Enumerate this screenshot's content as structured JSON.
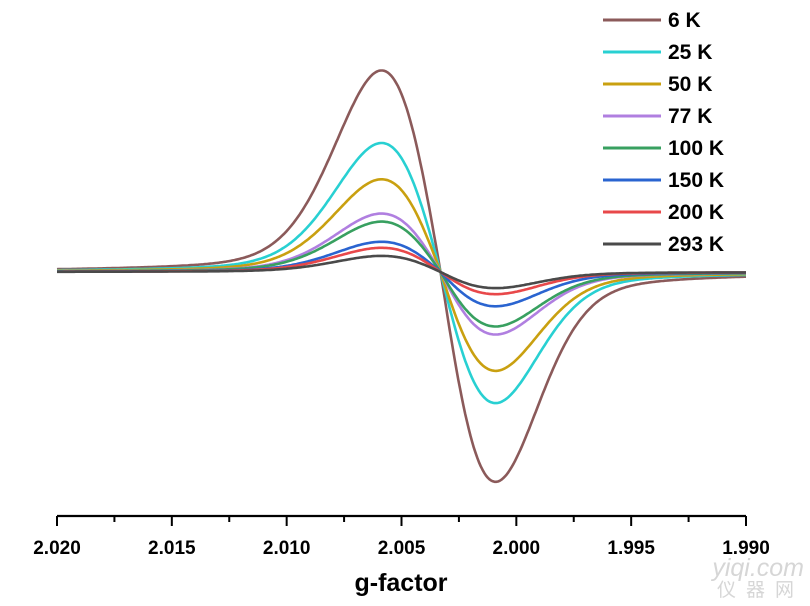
{
  "chart_data": {
    "type": "line",
    "xlabel": "g-factor",
    "xlim": [
      2.02,
      1.99
    ],
    "x_reversed": true,
    "xticks": [
      "2.020",
      "2.015",
      "2.010",
      "2.005",
      "2.000",
      "1.995",
      "1.990"
    ],
    "x_minor_step": 0.0025,
    "ylim": [
      -1.08,
      1.3
    ],
    "y_axis_visible": false,
    "grid": false,
    "legend_position": "top-right",
    "peak_g": 2.0059,
    "zero_cross_g": 2.0033,
    "trough_g": 2.0009,
    "series": [
      {
        "name": "6 K",
        "color": "#8b5a5a",
        "max": 1.0,
        "min": -1.04
      },
      {
        "name": "25 K",
        "color": "#28d0d2",
        "max": 0.64,
        "min": -0.65
      },
      {
        "name": "50 K",
        "color": "#c9a010",
        "max": 0.46,
        "min": -0.49
      },
      {
        "name": "77 K",
        "color": "#b07fe0",
        "max": 0.29,
        "min": -0.31
      },
      {
        "name": "100 K",
        "color": "#38a060",
        "max": 0.25,
        "min": -0.27
      },
      {
        "name": "150 K",
        "color": "#2a64d0",
        "max": 0.15,
        "min": -0.17
      },
      {
        "name": "200 K",
        "color": "#e8484a",
        "max": 0.12,
        "min": -0.11
      },
      {
        "name": "293 K",
        "color": "#4a4a4a",
        "max": 0.08,
        "min": -0.08
      }
    ]
  },
  "watermark": {
    "line1": "yiqi.com",
    "line2": "仪器网"
  }
}
